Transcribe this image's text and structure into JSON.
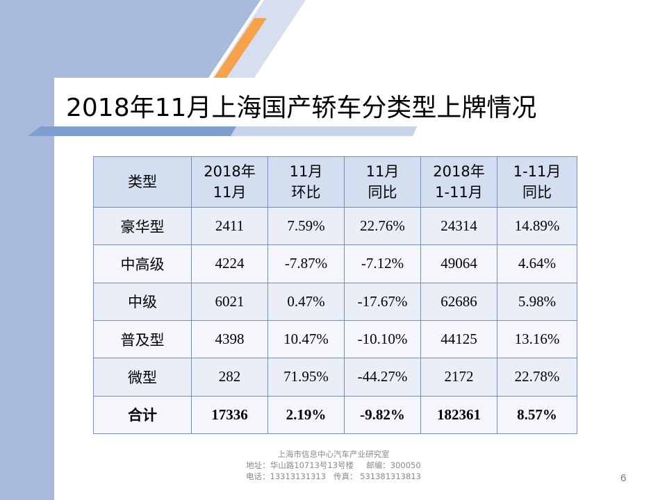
{
  "slide": {
    "title": "2018年11月上海国产轿车分类型上牌情况",
    "page_number": "6"
  },
  "table": {
    "header": {
      "c0": "类型",
      "c1a": "2018年",
      "c1b": "11月",
      "c2a": "11月",
      "c2b": "环比",
      "c3a": "11月",
      "c3b": "同比",
      "c4a": "2018年",
      "c4b": "1-11月",
      "c5a": "1-11月",
      "c5b": "同比"
    },
    "rows": [
      {
        "type": "豪华型",
        "nov": "2411",
        "mom": "7.59%",
        "yoy": "22.76%",
        "ytd": "24314",
        "ytd_yoy": "14.89%"
      },
      {
        "type": "中高级",
        "nov": "4224",
        "mom": "-7.87%",
        "yoy": "-7.12%",
        "ytd": "49064",
        "ytd_yoy": "4.64%"
      },
      {
        "type": "中级",
        "nov": "6021",
        "mom": "0.47%",
        "yoy": "-17.67%",
        "ytd": "62686",
        "ytd_yoy": "5.98%"
      },
      {
        "type": "普及型",
        "nov": "4398",
        "mom": "10.47%",
        "yoy": "-10.10%",
        "ytd": "44125",
        "ytd_yoy": "13.16%"
      },
      {
        "type": "微型",
        "nov": "282",
        "mom": "71.95%",
        "yoy": "-44.27%",
        "ytd": "2172",
        "ytd_yoy": "22.78%"
      }
    ],
    "total": {
      "type": "合计",
      "nov": "17336",
      "mom": "2.19%",
      "yoy": "-9.82%",
      "ytd": "182361",
      "ytd_yoy": "8.57%"
    }
  },
  "footer": {
    "org": "上海市信息中心汽车产业研究室",
    "address": "地址：华山路10713号13号楼     邮编：300050",
    "contact": "电话：13313131313   传真： 531381313813"
  },
  "colors": {
    "left_band": "#a9bbdc",
    "header_fill": "#d3dff0",
    "table_border": "#6f8fc4",
    "accent_orange": "#f5a24b"
  }
}
